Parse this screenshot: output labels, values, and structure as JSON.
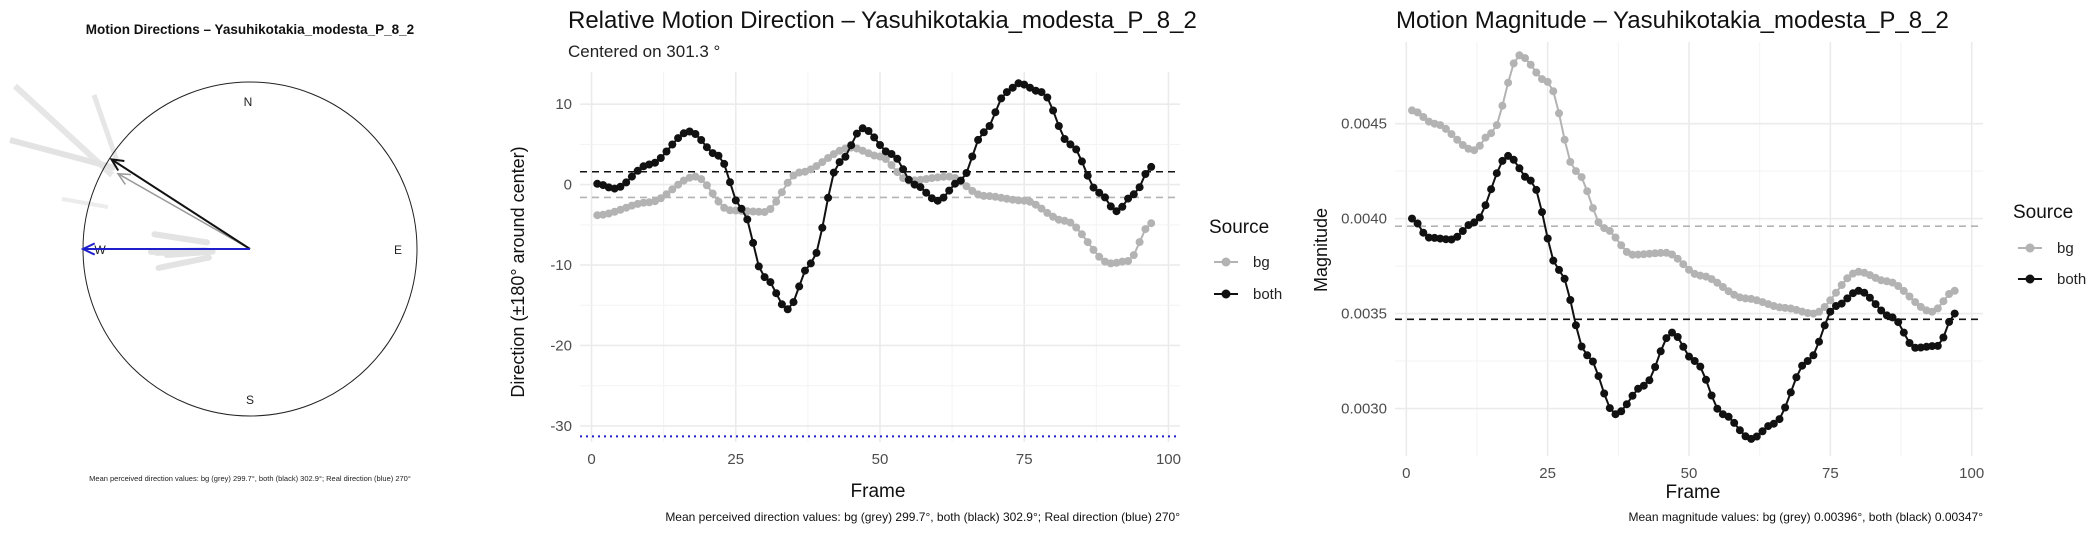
{
  "panels": {
    "compass": {
      "title": "Motion Directions – Yasuhikotakia_modesta_P_8_2",
      "labels": {
        "n": "N",
        "e": "E",
        "s": "S",
        "w": "W"
      },
      "caption": "Mean perceived direction values: bg (grey) 299.7°, both (black) 302.9°; Real direction (blue) 270°"
    },
    "direction": {
      "title": "Relative Motion Direction – Yasuhikotakia_modesta_P_8_2",
      "subtitle": "Centered on  301.3 °",
      "xlabel": "Frame",
      "ylabel": "Direction (±180° around center)",
      "caption": "Mean perceived direction values: bg (grey) 299.7°, both (black) 302.9°; Real direction (blue) 270°",
      "legend_title": "Source"
    },
    "magnitude": {
      "title": "Motion Magnitude – Yasuhikotakia_modesta_P_8_2",
      "xlabel": "Frame",
      "ylabel": "Magnitude",
      "caption": "Mean magnitude values: bg (grey) 0.00396°, both (black) 0.00347°",
      "legend_title": "Source"
    }
  },
  "colors": {
    "bg": "#b3b3b3",
    "both": "#111111",
    "real": "#1f1fcc",
    "grid": "#ebebeb"
  },
  "chart_data": [
    {
      "type": "compass",
      "series": [
        {
          "name": "bg",
          "mean_direction_deg": 299.7
        },
        {
          "name": "both",
          "mean_direction_deg": 302.9
        },
        {
          "name": "real",
          "mean_direction_deg": 270
        }
      ]
    },
    {
      "type": "line",
      "xlim": [
        -2,
        102
      ],
      "ylim": [
        -32,
        14
      ],
      "xticks": [
        0,
        25,
        50,
        75,
        100
      ],
      "yticks": [
        -30,
        -20,
        -10,
        0,
        10
      ],
      "legend": [
        "bg",
        "both"
      ],
      "legend_position": "right",
      "grid": true,
      "hlines": [
        {
          "series": "both",
          "y": 1.6,
          "style": "dashed"
        },
        {
          "series": "bg",
          "y": -1.6,
          "style": "dashed"
        },
        {
          "series": "real",
          "y": -31.3,
          "style": "dotted"
        }
      ],
      "series": [
        {
          "name": "bg",
          "x_start": 1,
          "x_end": 97,
          "knots": [
            [
              1,
              -3.8
            ],
            [
              10,
              -2.2
            ],
            [
              18,
              1.0
            ],
            [
              24,
              -3.2
            ],
            [
              30,
              -3.4
            ],
            [
              36,
              1.5
            ],
            [
              45,
              4.6
            ],
            [
              50,
              3.5
            ],
            [
              55,
              0.5
            ],
            [
              62,
              1.0
            ],
            [
              68,
              -1.4
            ],
            [
              75,
              -2.0
            ],
            [
              82,
              -4.5
            ],
            [
              90,
              -9.8
            ],
            [
              93,
              -9.5
            ],
            [
              97,
              -4.8
            ]
          ]
        },
        {
          "name": "both",
          "x_start": 1,
          "x_end": 97,
          "knots": [
            [
              1,
              0.1
            ],
            [
              4,
              -0.5
            ],
            [
              10,
              2.5
            ],
            [
              17,
              6.6
            ],
            [
              22,
              3.6
            ],
            [
              26,
              -3.0
            ],
            [
              30,
              -11.5
            ],
            [
              34,
              -15.5
            ],
            [
              38,
              -9.8
            ],
            [
              43,
              2.8
            ],
            [
              47,
              7.0
            ],
            [
              52,
              3.8
            ],
            [
              56,
              0.0
            ],
            [
              60,
              -2.0
            ],
            [
              64,
              0.5
            ],
            [
              68,
              6.5
            ],
            [
              72,
              11.5
            ],
            [
              74,
              12.6
            ],
            [
              78,
              11.5
            ],
            [
              83,
              5.0
            ],
            [
              88,
              -1.0
            ],
            [
              91,
              -3.3
            ],
            [
              94,
              -1.2
            ],
            [
              97,
              2.2
            ]
          ]
        }
      ]
    },
    {
      "type": "line",
      "xlim": [
        -2,
        102
      ],
      "ylim": [
        0.00275,
        0.00493
      ],
      "xticks": [
        0,
        25,
        50,
        75,
        100
      ],
      "yticks": [
        0.003,
        0.0035,
        0.004,
        0.0045
      ],
      "legend": [
        "bg",
        "both"
      ],
      "legend_position": "right",
      "grid": true,
      "hlines": [
        {
          "series": "bg",
          "y": 0.00396,
          "style": "dashed"
        },
        {
          "series": "both",
          "y": 0.00347,
          "style": "dashed"
        }
      ],
      "series": [
        {
          "name": "bg",
          "x_start": 1,
          "x_end": 97,
          "knots": [
            [
              1,
              0.00457
            ],
            [
              5,
              0.0045
            ],
            [
              12,
              0.00436
            ],
            [
              15,
              0.00445
            ],
            [
              20,
              0.00486
            ],
            [
              25,
              0.00472
            ],
            [
              30,
              0.00425
            ],
            [
              35,
              0.00395
            ],
            [
              40,
              0.00381
            ],
            [
              46,
              0.00382
            ],
            [
              52,
              0.0037
            ],
            [
              60,
              0.00358
            ],
            [
              67,
              0.00353
            ],
            [
              72,
              0.0035
            ],
            [
              80,
              0.00372
            ],
            [
              85,
              0.00367
            ],
            [
              93,
              0.00351
            ],
            [
              97,
              0.00362
            ]
          ]
        },
        {
          "name": "both",
          "x_start": 1,
          "x_end": 97,
          "knots": [
            [
              1,
              0.004
            ],
            [
              4,
              0.0039
            ],
            [
              8,
              0.00389
            ],
            [
              12,
              0.00398
            ],
            [
              18,
              0.00433
            ],
            [
              22,
              0.0042
            ],
            [
              27,
              0.00373
            ],
            [
              32,
              0.00328
            ],
            [
              37,
              0.00297
            ],
            [
              42,
              0.00312
            ],
            [
              47,
              0.0034
            ],
            [
              51,
              0.00325
            ],
            [
              56,
              0.00297
            ],
            [
              61,
              0.00284
            ],
            [
              65,
              0.00292
            ],
            [
              71,
              0.00325
            ],
            [
              76,
              0.00354
            ],
            [
              80,
              0.00362
            ],
            [
              86,
              0.00348
            ],
            [
              90,
              0.00332
            ],
            [
              94,
              0.00333
            ],
            [
              97,
              0.0035
            ]
          ]
        }
      ]
    }
  ]
}
